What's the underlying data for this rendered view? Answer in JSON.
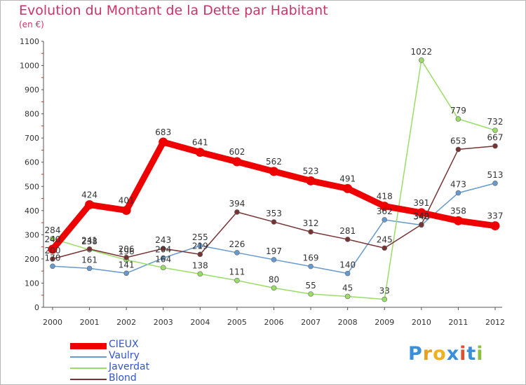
{
  "title": "Evolution du Montant de la Dette par Habitant",
  "subtitle": "(en €)",
  "brand": {
    "text": "Proxiti",
    "letters": [
      "P",
      "r",
      "o",
      "x",
      "i",
      "t",
      "i"
    ],
    "colors": [
      "#3a8fd8",
      "#e8a020",
      "#f0b020",
      "#3a8fd8",
      "#e05030",
      "#3a8fd8",
      "#8cc040"
    ]
  },
  "chart_data": {
    "type": "line",
    "title": "Evolution du Montant de la Dette par Habitant",
    "subtitle": "(en €)",
    "x": [
      "2000",
      "2001",
      "2002",
      "2003",
      "2004",
      "2005",
      "2006",
      "2007",
      "2008",
      "2009",
      "2010",
      "2011",
      "2012"
    ],
    "y_ticks": [
      "0",
      "100",
      "200",
      "300",
      "400",
      "500",
      "600",
      "700",
      "800",
      "900",
      "1000",
      "1100"
    ],
    "ylim": [
      0,
      1100
    ],
    "grid": false,
    "legend_position": "bottom-left",
    "series": [
      {
        "name": "CIEUX",
        "color": "#ee0000",
        "values": [
          240,
          424,
          401,
          683,
          641,
          602,
          562,
          523,
          491,
          418,
          391,
          358,
          337
        ]
      },
      {
        "name": "Vaulry",
        "color": "#6699cc",
        "values": [
          170,
          161,
          141,
          204,
          255,
          226,
          197,
          169,
          140,
          362,
          340,
          473,
          513
        ]
      },
      {
        "name": "Javerdat",
        "color": "#99dd66",
        "values": [
          284,
          238,
          196,
          164,
          138,
          111,
          80,
          55,
          45,
          33,
          1022,
          779,
          732
        ]
      },
      {
        "name": "Blond",
        "color": "#773333",
        "values": [
          200,
          241,
          206,
          243,
          219,
          394,
          353,
          312,
          281,
          245,
          342,
          653,
          667
        ]
      }
    ]
  }
}
